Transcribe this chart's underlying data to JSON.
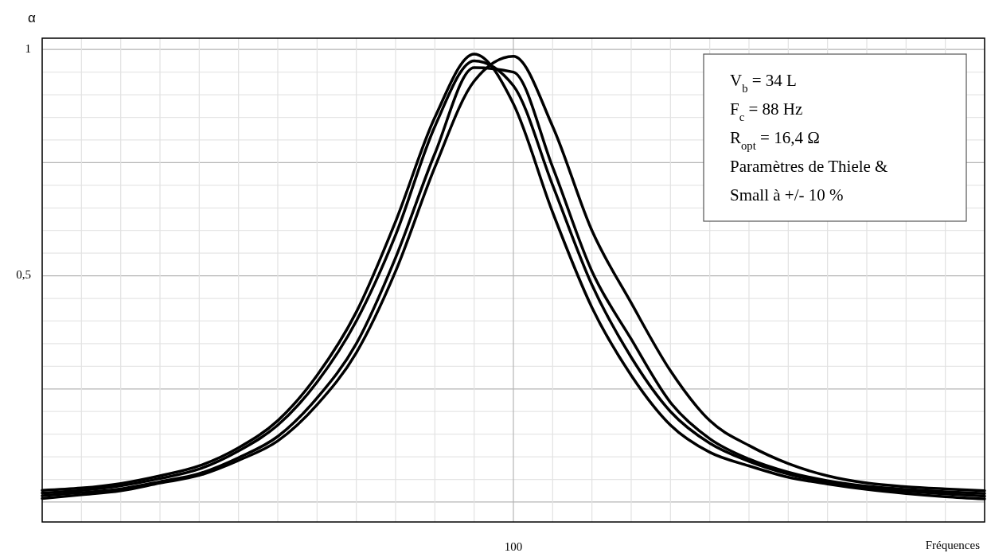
{
  "chart_data": {
    "type": "line",
    "ylabel": "α",
    "xlabel": "Fréquences",
    "grid": true,
    "marker": "none",
    "line_style": "solid",
    "categories": [
      null,
      null,
      null,
      null,
      null,
      null,
      null,
      null,
      null,
      null,
      null,
      null,
      "100",
      null,
      null,
      null,
      null,
      null,
      null,
      null,
      null,
      null,
      null,
      null,
      null
    ],
    "ylim": [
      -0.044,
      1.025
    ],
    "yticks": [
      {
        "value": 0,
        "label": null
      },
      {
        "value": 0.05,
        "label": null
      },
      {
        "value": 0.1,
        "label": null
      },
      {
        "value": 0.15,
        "label": null
      },
      {
        "value": 0.2,
        "label": null
      },
      {
        "value": 0.25,
        "label": null
      },
      {
        "value": 0.3,
        "label": null
      },
      {
        "value": 0.35,
        "label": null
      },
      {
        "value": 0.4,
        "label": null
      },
      {
        "value": 0.45,
        "label": null
      },
      {
        "value": 0.5,
        "label": "0,5"
      },
      {
        "value": 0.55,
        "label": null
      },
      {
        "value": 0.6,
        "label": null
      },
      {
        "value": 0.65,
        "label": null
      },
      {
        "value": 0.7,
        "label": null
      },
      {
        "value": 0.75,
        "label": null
      },
      {
        "value": 0.8,
        "label": null
      },
      {
        "value": 0.85,
        "label": null
      },
      {
        "value": 0.9,
        "label": null
      },
      {
        "value": 0.95,
        "label": null
      },
      {
        "value": 1,
        "label": "1"
      }
    ],
    "series": [
      {
        "color": "#000000",
        "values": [
          0.026,
          0.031,
          0.041,
          0.058,
          0.08,
          0.12,
          0.18,
          0.28,
          0.42,
          0.62,
          0.85,
          0.99,
          0.88,
          0.64,
          0.43,
          0.28,
          0.17,
          0.11,
          0.08,
          0.055,
          0.04,
          0.028,
          0.019,
          0.012,
          0.007
        ]
      },
      {
        "color": "#000000",
        "values": [
          0.02,
          0.026,
          0.036,
          0.052,
          0.073,
          0.113,
          0.17,
          0.265,
          0.4,
          0.59,
          0.83,
          0.975,
          0.92,
          0.7,
          0.48,
          0.32,
          0.2,
          0.13,
          0.09,
          0.062,
          0.044,
          0.032,
          0.024,
          0.018,
          0.013
        ]
      },
      {
        "color": "#000000",
        "values": [
          0.014,
          0.021,
          0.029,
          0.045,
          0.063,
          0.098,
          0.145,
          0.23,
          0.35,
          0.54,
          0.77,
          0.96,
          0.95,
          0.74,
          0.51,
          0.36,
          0.22,
          0.14,
          0.095,
          0.066,
          0.047,
          0.035,
          0.028,
          0.023,
          0.019
        ]
      },
      {
        "color": "#000000",
        "values": [
          0.008,
          0.016,
          0.025,
          0.042,
          0.059,
          0.092,
          0.135,
          0.215,
          0.33,
          0.51,
          0.74,
          0.93,
          0.985,
          0.83,
          0.6,
          0.44,
          0.29,
          0.18,
          0.125,
          0.085,
          0.058,
          0.042,
          0.034,
          0.029,
          0.025
        ]
      }
    ],
    "annotations": [
      "V$_{b}$ = 34 L",
      "F$_{c}$ = 88 Hz",
      "R$_{opt}$ = 16,4 Ω",
      "Paramètres de Thiele &",
      "Small à +/- 10 %"
    ]
  }
}
